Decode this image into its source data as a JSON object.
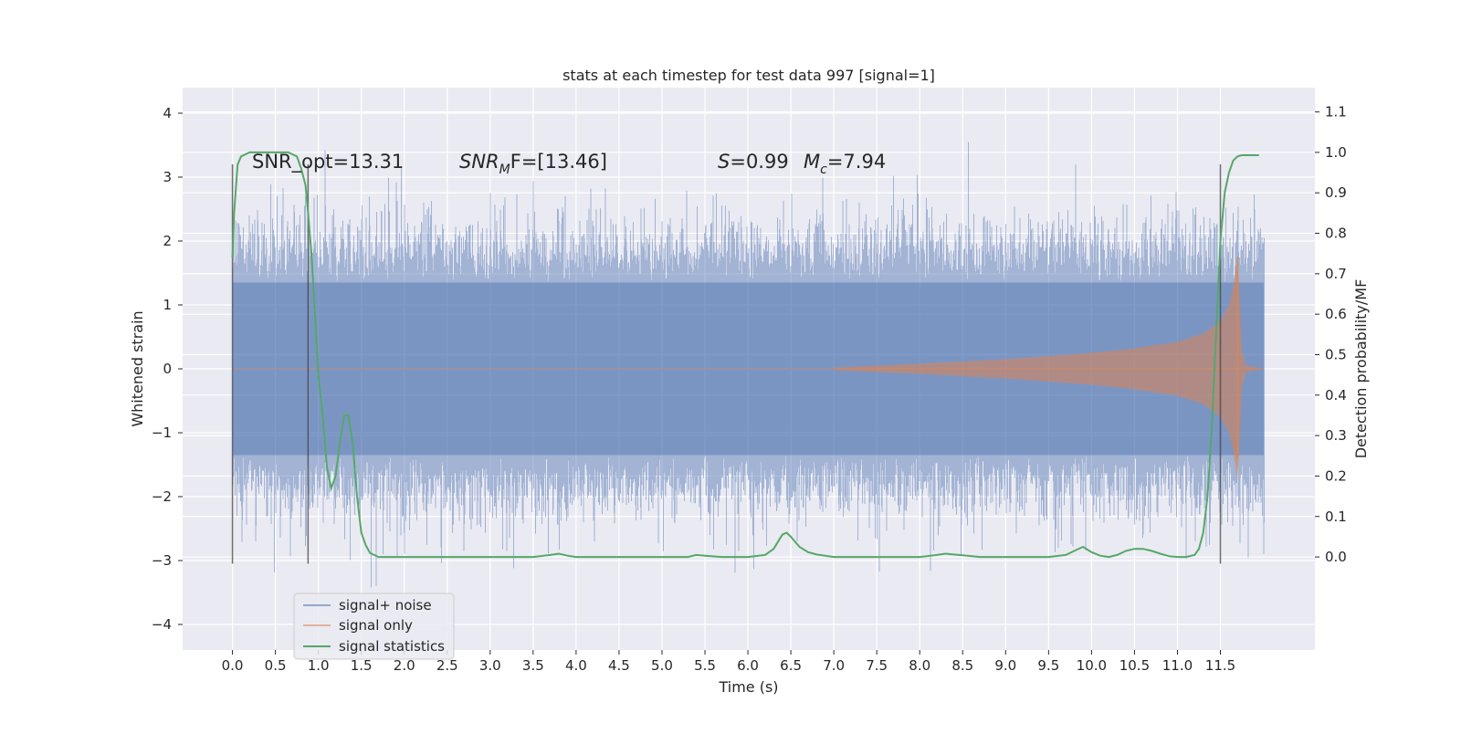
{
  "chart_data": {
    "type": "line",
    "title": "stats at each timestep for test data 997 [signal=1]",
    "xlabel": "Time (s)",
    "ylabel": "Whitened strain",
    "y2label": "Detection probability/MF",
    "xlim": [
      -0.58,
      12.6
    ],
    "ylim": [
      -4.4,
      4.4
    ],
    "y2lim": [
      -0.23,
      1.16
    ],
    "x_ticks": [
      0.0,
      0.5,
      1.0,
      1.5,
      2.0,
      2.5,
      3.0,
      3.5,
      4.0,
      4.5,
      5.0,
      5.5,
      6.0,
      6.5,
      7.0,
      7.5,
      8.0,
      8.5,
      9.0,
      9.5,
      10.0,
      10.5,
      11.0,
      11.5
    ],
    "x_tick_labels": [
      "0.0",
      "0.5",
      "1.0",
      "1.5",
      "2.0",
      "2.5",
      "3.0",
      "3.5",
      "4.0",
      "4.5",
      "5.0",
      "5.5",
      "6.0",
      "6.5",
      "7.0",
      "7.5",
      "8.0",
      "8.5",
      "9.0",
      "9.5",
      "10.0",
      "10.5",
      "11.0",
      "11.5"
    ],
    "y_ticks": [
      4,
      3,
      2,
      1,
      0,
      -1,
      -2,
      -3,
      -4
    ],
    "y_tick_labels": [
      "4",
      "3",
      "2",
      "1",
      "0",
      "−1",
      "−2",
      "−3",
      "−4"
    ],
    "y2_ticks": [
      1.1,
      1.0,
      0.9,
      0.8,
      0.7,
      0.6,
      0.5,
      0.4,
      0.3,
      0.2,
      0.1,
      0.0
    ],
    "y2_tick_labels": [
      "1.1",
      "1.0",
      "0.9",
      "0.8",
      "0.7",
      "0.6",
      "0.5",
      "0.4",
      "0.3",
      "0.2",
      "0.1",
      "0.0"
    ],
    "grid": true,
    "legend_placement": "lower-left",
    "annotations": {
      "snr_opt": "SNR_opt=13.31",
      "snr_mf_prefix": "SNR",
      "snr_mf_sub": "M",
      "snr_mf_suffix": "F=[13.46]",
      "s_text": "S",
      "s_value": "=0.99",
      "mc_text": "M",
      "mc_sub": "c",
      "mc_value": "=7.94"
    },
    "colors": {
      "background": "#eaeaf2",
      "grid": "#ffffff",
      "noise": "#4c72b0",
      "signal": "#dd8452",
      "stats": "#55a868",
      "vline": "#404040"
    },
    "vertical_lines": {
      "x": [
        0.0,
        0.88,
        11.5
      ],
      "y_top": 3.2,
      "y_bottom": -3.05
    },
    "series": [
      {
        "name": "signal+ noise",
        "axis": "left",
        "style": "noise-band",
        "t_start": 0.0,
        "t_end": 12.0,
        "typical_amplitude": 1.35,
        "noise_seed": 997
      },
      {
        "name": "signal only",
        "axis": "left",
        "style": "chirp",
        "t_start": 7.0,
        "t_merger": 11.7,
        "t_end": 12.0,
        "envelope": {
          "t": [
            7.0,
            8.0,
            9.0,
            10.0,
            10.5,
            11.0,
            11.3,
            11.5,
            11.6,
            11.65,
            11.7,
            11.75,
            11.8,
            12.0
          ],
          "amp": [
            0.02,
            0.08,
            0.15,
            0.25,
            0.32,
            0.42,
            0.55,
            0.75,
            1.0,
            1.3,
            1.75,
            0.3,
            0.05,
            0.0
          ]
        }
      },
      {
        "name": "signal statistics",
        "axis": "right",
        "style": "line",
        "x": [
          0.0,
          0.02,
          0.06,
          0.1,
          0.2,
          0.3,
          0.45,
          0.55,
          0.65,
          0.75,
          0.8,
          0.85,
          0.88,
          0.92,
          0.96,
          1.0,
          1.05,
          1.1,
          1.15,
          1.2,
          1.25,
          1.3,
          1.35,
          1.4,
          1.45,
          1.5,
          1.55,
          1.6,
          1.65,
          1.7,
          1.8,
          2.0,
          2.5,
          3.0,
          3.5,
          3.7,
          3.8,
          3.9,
          4.0,
          4.5,
          5.0,
          5.3,
          5.4,
          5.5,
          5.7,
          6.0,
          6.2,
          6.3,
          6.4,
          6.45,
          6.5,
          6.6,
          6.7,
          6.8,
          7.0,
          7.5,
          8.0,
          8.2,
          8.3,
          8.5,
          8.7,
          9.0,
          9.5,
          9.7,
          9.8,
          9.9,
          10.0,
          10.1,
          10.2,
          10.3,
          10.4,
          10.5,
          10.6,
          10.7,
          10.8,
          10.9,
          11.0,
          11.1,
          11.2,
          11.25,
          11.3,
          11.35,
          11.4,
          11.45,
          11.5,
          11.55,
          11.6,
          11.65,
          11.7,
          11.75,
          11.8,
          11.85,
          11.9,
          11.95
        ],
        "values": [
          0.74,
          0.85,
          0.97,
          0.99,
          1.0,
          1.0,
          1.0,
          1.0,
          1.0,
          0.99,
          0.96,
          0.92,
          0.85,
          0.75,
          0.6,
          0.45,
          0.35,
          0.22,
          0.17,
          0.2,
          0.28,
          0.35,
          0.35,
          0.28,
          0.15,
          0.06,
          0.03,
          0.01,
          0.005,
          0.0,
          0.0,
          0.0,
          0.0,
          0.0,
          0.0,
          0.005,
          0.008,
          0.003,
          0.0,
          0.0,
          0.0,
          0.0,
          0.005,
          0.003,
          0.0,
          0.0,
          0.005,
          0.02,
          0.055,
          0.06,
          0.05,
          0.025,
          0.012,
          0.006,
          0.0,
          0.0,
          0.0,
          0.005,
          0.008,
          0.004,
          0.0,
          0.0,
          0.0,
          0.005,
          0.015,
          0.025,
          0.012,
          0.003,
          0.0,
          0.005,
          0.015,
          0.02,
          0.02,
          0.015,
          0.008,
          0.002,
          0.0,
          0.0,
          0.005,
          0.02,
          0.06,
          0.15,
          0.32,
          0.55,
          0.78,
          0.9,
          0.95,
          0.98,
          0.99,
          0.993,
          0.993,
          0.993,
          0.993,
          0.993
        ]
      }
    ],
    "legend": [
      {
        "label": "signal+ noise",
        "color": "#4c72b0"
      },
      {
        "label": "signal only",
        "color": "#dd8452"
      },
      {
        "label": "signal statistics",
        "color": "#55a868"
      }
    ]
  }
}
